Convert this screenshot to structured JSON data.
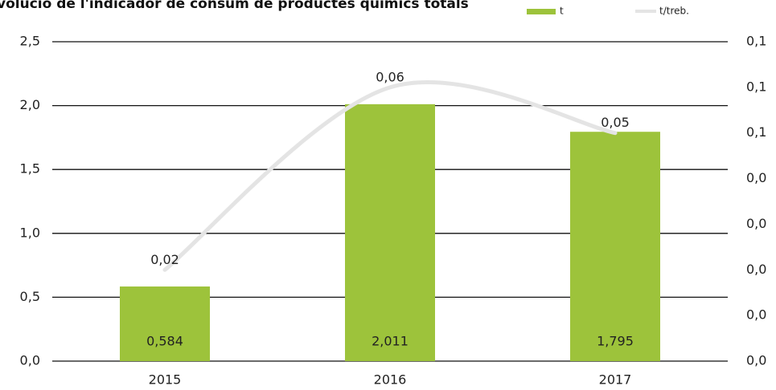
{
  "chart_data": {
    "type": "bar",
    "title": "volució de l'indicador de consum de productes químics totals",
    "categories": [
      "2015",
      "2016",
      "2017"
    ],
    "series": [
      {
        "name": "t",
        "type": "bar",
        "color": "#9dc33b",
        "values": [
          0.584,
          2.011,
          1.795
        ],
        "value_labels": [
          "0,584",
          "2,011",
          "1,795"
        ]
      },
      {
        "name": "t/treb.",
        "type": "line",
        "axis": "y2",
        "color": "#e4e4e4",
        "values": [
          0.02,
          0.06,
          0.05
        ],
        "value_labels": [
          "0,02",
          "0,06",
          "0,05"
        ]
      }
    ],
    "ylim": [
      0,
      2.5
    ],
    "yticks": [
      {
        "value": 0,
        "label": "0,0"
      },
      {
        "value": 0.5,
        "label": "0,5"
      },
      {
        "value": 1,
        "label": "1,0"
      },
      {
        "value": 1.5,
        "label": "1,5"
      },
      {
        "value": 2,
        "label": "2,0"
      },
      {
        "value": 2.5,
        "label": "2,5"
      }
    ],
    "y2lim": [
      0,
      0.07
    ],
    "y2ticks": [
      {
        "value": 0,
        "label": "0,0"
      },
      {
        "value": 0.01,
        "label": "0,0"
      },
      {
        "value": 0.02,
        "label": "0,0"
      },
      {
        "value": 0.03,
        "label": "0,0"
      },
      {
        "value": 0.04,
        "label": "0,0"
      },
      {
        "value": 0.05,
        "label": "0,1"
      },
      {
        "value": 0.06,
        "label": "0,1"
      },
      {
        "value": 0.07,
        "label": "0,1"
      }
    ],
    "grid": true,
    "legend": "top-right"
  }
}
